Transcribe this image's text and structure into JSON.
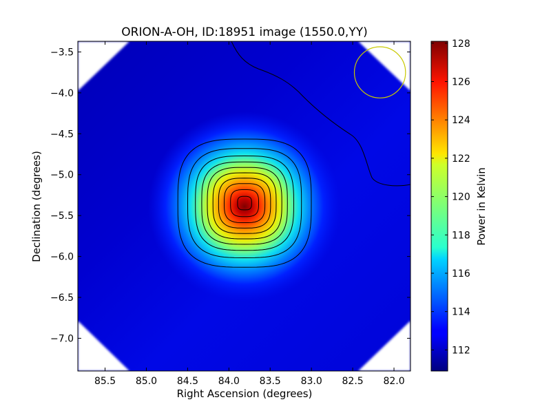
{
  "chart_data": {
    "type": "heatmap",
    "title": "ORION-A-OH, ID:18951 image (1550.0,YY)",
    "xlabel": "Right Ascension (degrees)",
    "ylabel": "Declination (degrees)",
    "xlim": [
      85.83,
      81.8
    ],
    "ylim": [
      -7.4,
      -3.37
    ],
    "x_ticks": [
      85.5,
      85.0,
      84.5,
      84.0,
      83.5,
      83.0,
      82.5,
      82.0
    ],
    "x_tick_labels": [
      "85.5",
      "85.0",
      "84.5",
      "84.0",
      "83.5",
      "83.0",
      "82.5",
      "82.0"
    ],
    "y_ticks": [
      -3.5,
      -4.0,
      -4.5,
      -5.0,
      -5.5,
      -6.0,
      -6.5,
      -7.0
    ],
    "y_tick_labels": [
      "−3.5",
      "−4.0",
      "−4.5",
      "−5.0",
      "−5.5",
      "−6.0",
      "−6.5",
      "−7.0"
    ],
    "colormap": "jet",
    "colorbar": {
      "label": "Power in Kelvin",
      "range": [
        110.9,
        128.1
      ],
      "ticks": [
        112,
        114,
        116,
        118,
        120,
        122,
        124,
        126,
        128
      ],
      "tick_labels": [
        "112",
        "114",
        "116",
        "118",
        "120",
        "122",
        "124",
        "126",
        "128"
      ]
    },
    "source": {
      "ra": 83.81,
      "dec": -5.39,
      "peak_k": 128.0,
      "background_k": 111.5
    },
    "contour_color": "#000000",
    "beam": {
      "ra": 82.17,
      "dec": -3.75,
      "radius_deg": 0.31,
      "color": "#c8c800"
    }
  }
}
